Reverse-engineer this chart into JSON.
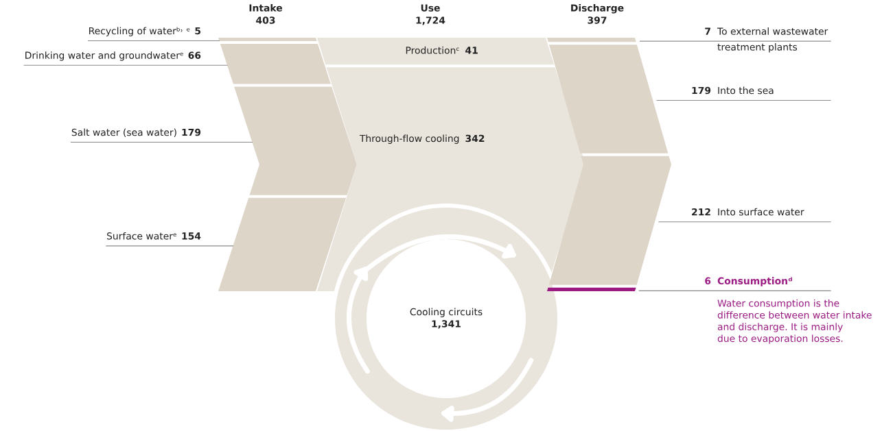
{
  "chart_data": [
    {
      "type": "other",
      "title": "Intake",
      "subtitle": "403",
      "categories": [
        "Recycling of waterᵇ˒ ᵉ",
        "Drinking water and groundwaterᵉ",
        "Salt water (sea water)",
        "Surface waterᵉ"
      ],
      "values": [
        5,
        66,
        179,
        154
      ],
      "colors": [
        "#ddd5c8",
        "#ddd5c8",
        "#ddd5c8",
        "#ddd5c8"
      ],
      "data_labels": true
    },
    {
      "type": "other",
      "title": "Use",
      "subtitle": "1,724",
      "categories": [
        "Productionᶜ",
        "Through-flow cooling",
        "Cooling circuits"
      ],
      "values": [
        41,
        342,
        1341
      ],
      "colors": [
        "#e9e4dc",
        "#e9e4dc",
        "#e9e4dc"
      ],
      "value_labels": [
        "41",
        "342",
        "1,341"
      ]
    },
    {
      "type": "other",
      "title": "Discharge",
      "subtitle": "397",
      "categories": [
        "To external wastewater\ntreatment plants",
        "Into the sea",
        "Into surface water",
        "Consumptionᵈ"
      ],
      "values": [
        7,
        179,
        212,
        6
      ],
      "colors": [
        "#ddd5c8",
        "#ddd5c8",
        "#ddd5c8",
        "#9b1b83"
      ],
      "data_labels": true,
      "annotations": [
        "Water consumption is the\ndifference between water intake\nand discharge. It is mainly\ndue to evaporation losses."
      ]
    }
  ]
}
